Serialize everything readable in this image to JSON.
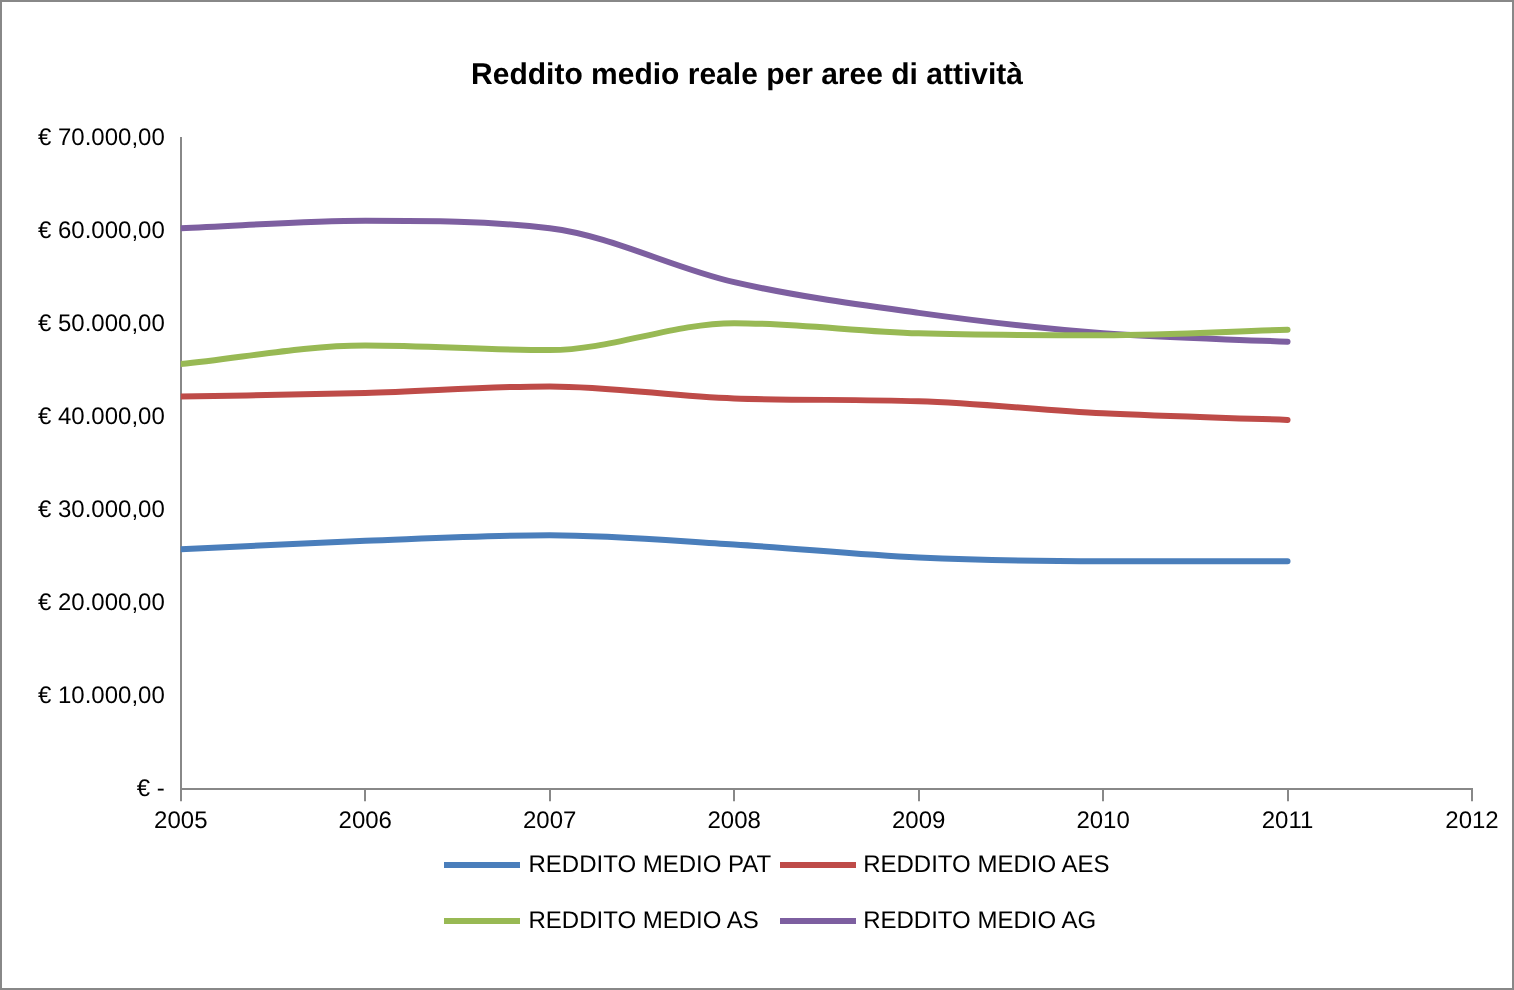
{
  "chart_data": {
    "type": "line",
    "title": "Reddito medio reale per aree di attività",
    "x": [
      2005,
      2006,
      2007,
      2008,
      2009,
      2010,
      2011
    ],
    "xlim": [
      2005,
      2012
    ],
    "xticks": [
      2005,
      2006,
      2007,
      2008,
      2009,
      2010,
      2011,
      2012
    ],
    "ylim": [
      0,
      70000
    ],
    "yticks": [
      {
        "value": 0,
        "label": "€ -"
      },
      {
        "value": 10000,
        "label": "€ 10.000,00"
      },
      {
        "value": 20000,
        "label": "€ 20.000,00"
      },
      {
        "value": 30000,
        "label": "€ 30.000,00"
      },
      {
        "value": 40000,
        "label": "€ 40.000,00"
      },
      {
        "value": 50000,
        "label": "€ 50.000,00"
      },
      {
        "value": 60000,
        "label": "€ 60.000,00"
      },
      {
        "value": 70000,
        "label": "€ 70.000,00"
      }
    ],
    "grid": false,
    "legend": "bottom",
    "marker": "none",
    "line_style": "solid",
    "series": [
      {
        "name": "REDDITO MEDIO PAT",
        "color": "#4a7ebb",
        "values": [
          25800,
          26700,
          27300,
          26300,
          24900,
          24500,
          24500
        ]
      },
      {
        "name": "REDDITO MEDIO AES",
        "color": "#be4b48",
        "values": [
          42200,
          42600,
          43300,
          42000,
          41700,
          40400,
          39700
        ]
      },
      {
        "name": "REDDITO MEDIO AS",
        "color": "#98b954",
        "values": [
          45700,
          47700,
          47200,
          50100,
          49000,
          48800,
          49400
        ]
      },
      {
        "name": "REDDITO MEDIO AG",
        "color": "#7d5fa0",
        "values": [
          60300,
          61100,
          60300,
          54500,
          51200,
          49000,
          48100
        ]
      }
    ]
  }
}
